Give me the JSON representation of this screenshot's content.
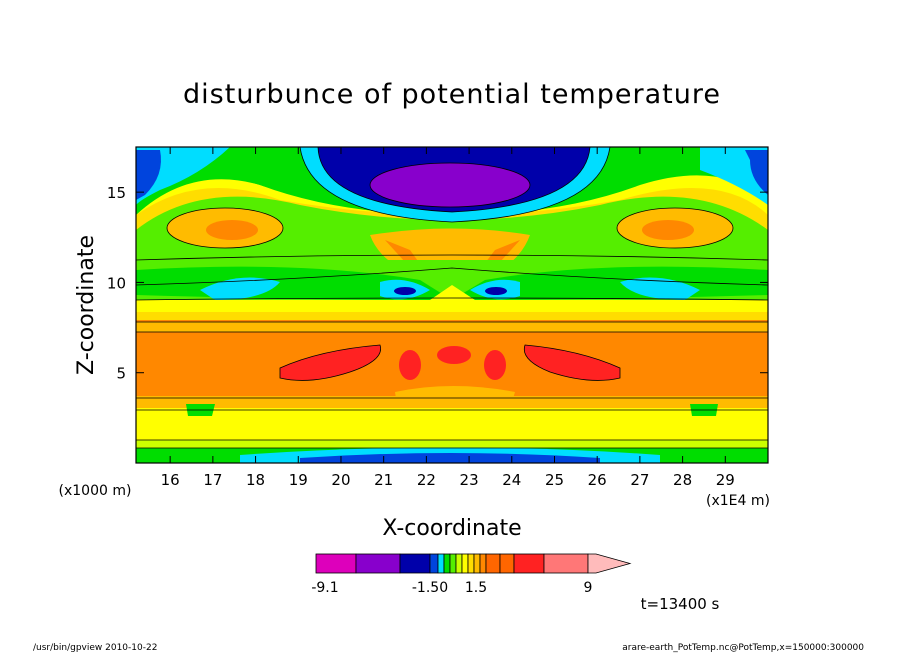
{
  "chart_data": {
    "type": "heatmap",
    "title": "disturbunce of potential temperature",
    "xlabel": "X-coordinate",
    "ylabel": "Z-coordinate",
    "x_unit": "(x1E4 m)",
    "y_unit": "(x1000 m)",
    "xlim": [
      15.2,
      30
    ],
    "ylim": [
      0,
      17.5
    ],
    "x_ticks": [
      16,
      17,
      18,
      19,
      20,
      21,
      22,
      23,
      24,
      25,
      26,
      27,
      28,
      29
    ],
    "y_ticks": [
      5,
      10,
      15
    ],
    "time_label": "t=13400 s",
    "colorbar": {
      "levels": [
        -9.1,
        -7.5,
        -6,
        -3,
        -1.5,
        -1.2,
        -0.9,
        -0.6,
        -0.3,
        0,
        0.3,
        0.6,
        0.9,
        1.2,
        1.5,
        3,
        4.5,
        6,
        7.5,
        9
      ],
      "labels": [
        "-9.1",
        "-1.50",
        "1.5",
        "9"
      ],
      "colors": [
        "#dd00bb",
        "#8800cc",
        "#0000aa",
        "#0044dd",
        "#00ddff",
        "#00dd00",
        "#55ee00",
        "#ccff00",
        "#ffff00",
        "#ffdd00",
        "#ffbb00",
        "#ff8800",
        "#ff6600",
        "#ff6600",
        "#ff2222",
        "#ff7777",
        "#ffbbbb"
      ]
    },
    "regions": [
      {
        "level": "minimum -9.1 to -6",
        "color": "#8800cc",
        "center": [
          22.3,
          16.3
        ]
      },
      {
        "level": "-6 to -3",
        "color": "#0000aa",
        "center": [
          22.3,
          15.5
        ]
      },
      {
        "level": "positive 3 to 6",
        "color": "#ff6600",
        "zrange": [
          3.8,
          7.8
        ]
      },
      {
        "level": "positive 6 to 7.5",
        "color": "#ff2222",
        "centers": [
          [
            19.5,
            5.8
          ],
          [
            22.5,
            5.8
          ],
          [
            25.5,
            5.8
          ]
        ]
      }
    ]
  },
  "footer": {
    "program": "/usr/bin/gpview   2010-10-22",
    "source": "arare-earth_PotTemp.nc@PotTemp,x=150000:300000"
  }
}
